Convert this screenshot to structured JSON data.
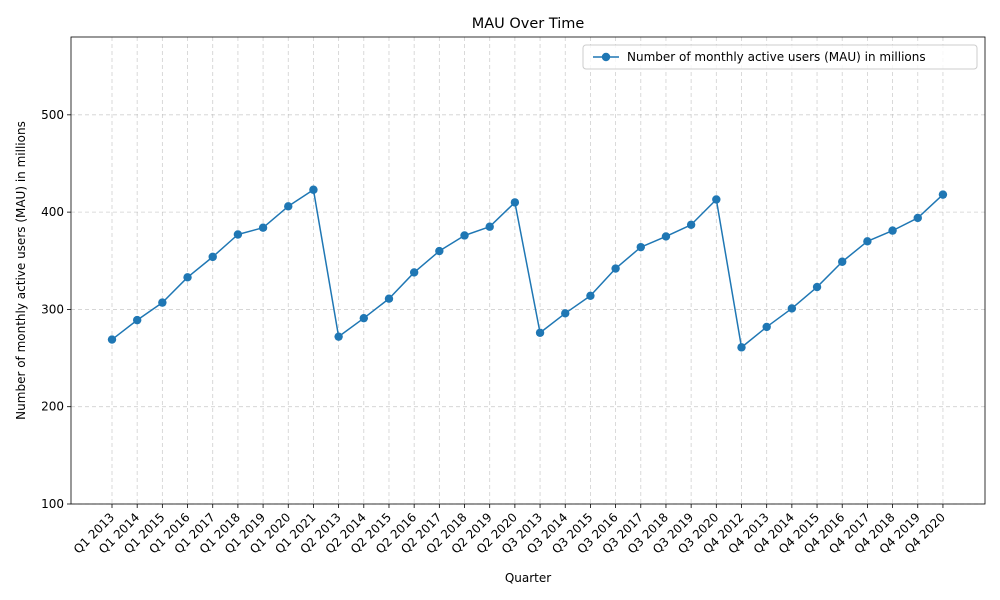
{
  "chart_data": {
    "type": "line",
    "title": "MAU Over Time",
    "xlabel": "Quarter",
    "ylabel": "Number of monthly active users (MAU) in millions",
    "ylim": [
      100,
      580
    ],
    "yticks": [
      100,
      200,
      300,
      400,
      500
    ],
    "grid": true,
    "legend_position": "top-right",
    "categories": [
      "Q1 2013",
      "Q1 2014",
      "Q1 2015",
      "Q1 2016",
      "Q1 2017",
      "Q1 2018",
      "Q1 2019",
      "Q1 2020",
      "Q1 2021",
      "Q2 2013",
      "Q2 2014",
      "Q2 2015",
      "Q2 2016",
      "Q2 2017",
      "Q2 2018",
      "Q2 2019",
      "Q2 2020",
      "Q3 2013",
      "Q3 2014",
      "Q3 2015",
      "Q3 2016",
      "Q3 2017",
      "Q3 2018",
      "Q3 2019",
      "Q3 2020",
      "Q4 2012",
      "Q4 2013",
      "Q4 2014",
      "Q4 2015",
      "Q4 2016",
      "Q4 2017",
      "Q4 2018",
      "Q4 2019",
      "Q4 2020"
    ],
    "series": [
      {
        "name": "Number of monthly active users (MAU) in millions",
        "color": "#1f77b4",
        "values": [
          269,
          289,
          307,
          333,
          354,
          377,
          384,
          406,
          423,
          272,
          291,
          311,
          338,
          360,
          376,
          385,
          410,
          276,
          296,
          314,
          342,
          364,
          375,
          387,
          413,
          261,
          282,
          301,
          323,
          349,
          370,
          381,
          394,
          418
        ]
      }
    ]
  }
}
